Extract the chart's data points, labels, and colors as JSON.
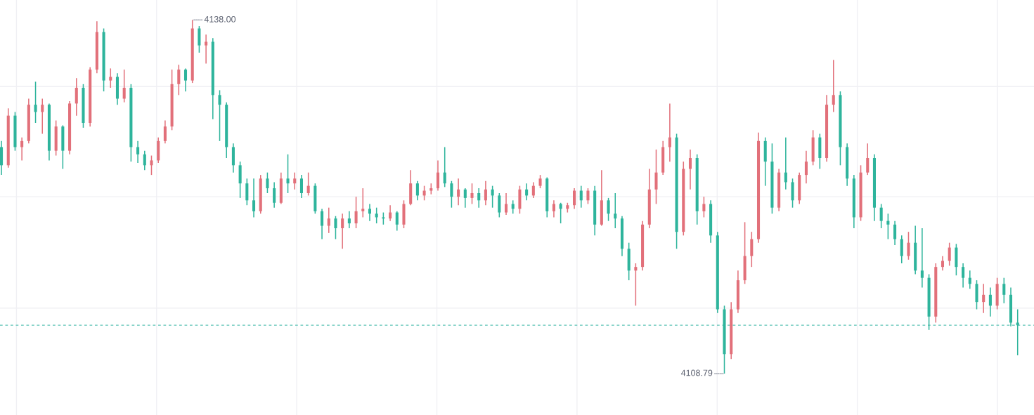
{
  "chart_data": {
    "type": "candlestick",
    "categories": [
      null,
      null,
      null,
      null,
      null,
      null,
      null,
      null,
      null,
      null,
      null,
      null,
      null,
      null,
      null,
      null,
      null,
      null,
      null,
      null,
      null,
      null,
      null,
      null,
      null,
      null,
      null,
      null,
      null,
      null,
      null,
      null,
      null,
      null,
      null,
      null,
      null,
      null,
      null,
      null,
      null,
      null,
      null,
      null,
      null,
      null,
      null,
      null,
      null,
      null,
      null,
      null,
      null,
      null,
      null,
      null,
      null,
      null,
      null,
      null,
      null,
      null,
      null,
      null,
      null,
      null,
      null,
      null,
      null,
      null,
      null,
      null,
      null,
      null,
      null,
      null,
      null,
      null,
      null,
      null,
      null,
      null,
      null,
      null,
      null,
      null,
      null,
      null,
      null,
      null,
      null,
      null,
      null,
      null,
      null,
      null,
      null,
      null,
      null,
      null,
      null,
      null,
      null,
      null,
      null,
      null,
      null,
      null,
      null,
      null,
      null,
      null,
      null,
      null,
      null,
      null,
      null,
      null,
      null,
      null,
      null,
      null,
      null,
      null,
      null,
      null,
      null,
      null,
      null,
      null,
      null,
      null,
      null,
      null,
      null,
      null,
      null,
      null,
      null,
      null,
      null,
      null,
      null,
      null,
      null,
      null,
      null,
      null,
      null,
      null
    ],
    "ohlc": [
      [
        4127.5,
        4128.0,
        4125.2,
        4126.0
      ],
      [
        4126.0,
        4130.7,
        4125.8,
        4130.1
      ],
      [
        4130.1,
        4130.4,
        4127.2,
        4127.5
      ],
      [
        4127.5,
        4128.3,
        4126.4,
        4128.0
      ],
      [
        4128.0,
        4131.5,
        4127.8,
        4131.0
      ],
      [
        4131.0,
        4132.9,
        4129.5,
        4130.4
      ],
      [
        4130.4,
        4131.5,
        4128.6,
        4131.0
      ],
      [
        4131.0,
        4131.1,
        4126.4,
        4127.2
      ],
      [
        4127.2,
        4129.7,
        4126.8,
        4129.2
      ],
      [
        4129.2,
        4129.3,
        4125.7,
        4127.2
      ],
      [
        4127.2,
        4131.3,
        4126.9,
        4131.1
      ],
      [
        4131.1,
        4133.2,
        4130.1,
        4132.4
      ],
      [
        4132.4,
        4132.7,
        4129.1,
        4129.5
      ],
      [
        4129.5,
        4134.1,
        4129.2,
        4133.9
      ],
      [
        4133.9,
        4137.9,
        4133.6,
        4137.0
      ],
      [
        4137.0,
        4137.3,
        4132.1,
        4133.0
      ],
      [
        4133.0,
        4134.0,
        4132.4,
        4133.3
      ],
      [
        4133.3,
        4133.6,
        4131.0,
        4131.5
      ],
      [
        4131.5,
        4133.9,
        4131.2,
        4132.4
      ],
      [
        4132.4,
        4132.7,
        4126.3,
        4127.5
      ],
      [
        4127.5,
        4128.0,
        4126.2,
        4126.9
      ],
      [
        4126.9,
        4127.2,
        4125.6,
        4126.0
      ],
      [
        4126.0,
        4126.8,
        4125.2,
        4126.4
      ],
      [
        4126.4,
        4128.3,
        4126.2,
        4128.0
      ],
      [
        4128.0,
        4129.7,
        4127.8,
        4129.2
      ],
      [
        4129.2,
        4133.9,
        4128.9,
        4132.7
      ],
      [
        4132.7,
        4134.3,
        4131.8,
        4133.9
      ],
      [
        4133.9,
        4134.0,
        4132.1,
        4133.0
      ],
      [
        4133.0,
        4138.0,
        4132.8,
        4137.3
      ],
      [
        4137.3,
        4137.5,
        4135.3,
        4135.9
      ],
      [
        4135.9,
        4136.8,
        4134.4,
        4136.2
      ],
      [
        4136.2,
        4136.5,
        4129.8,
        4131.8
      ],
      [
        4131.8,
        4132.2,
        4128.0,
        4131.0
      ],
      [
        4131.0,
        4131.2,
        4126.6,
        4127.5
      ],
      [
        4127.5,
        4127.8,
        4125.4,
        4126.0
      ],
      [
        4126.0,
        4126.3,
        4123.3,
        4124.5
      ],
      [
        4124.5,
        4124.9,
        4122.7,
        4123.1
      ],
      [
        4123.1,
        4124.9,
        4121.7,
        4122.2
      ],
      [
        4122.2,
        4125.2,
        4122.0,
        4124.9
      ],
      [
        4124.9,
        4125.4,
        4123.7,
        4124.1
      ],
      [
        4124.1,
        4124.6,
        4122.5,
        4122.9
      ],
      [
        4122.9,
        4125.4,
        4122.8,
        4124.9
      ],
      [
        4124.9,
        4126.9,
        4123.7,
        4124.5
      ],
      [
        4124.5,
        4125.4,
        4124.0,
        4124.9
      ],
      [
        4124.9,
        4125.2,
        4123.3,
        4123.7
      ],
      [
        4123.7,
        4125.4,
        4123.5,
        4124.3
      ],
      [
        4124.3,
        4124.5,
        4122.0,
        4122.2
      ],
      [
        4122.2,
        4122.4,
        4119.9,
        4121.0
      ],
      [
        4121.0,
        4122.5,
        4120.4,
        4121.6
      ],
      [
        4121.6,
        4121.8,
        4119.9,
        4120.8
      ],
      [
        4120.8,
        4122.0,
        4119.1,
        4121.6
      ],
      [
        4121.6,
        4122.2,
        4120.8,
        4121.2
      ],
      [
        4121.2,
        4123.4,
        4120.8,
        4122.2
      ],
      [
        4122.2,
        4124.1,
        4121.7,
        4122.4
      ],
      [
        4122.4,
        4122.8,
        4121.4,
        4122.0
      ],
      [
        4122.0,
        4122.5,
        4121.2,
        4121.7
      ],
      [
        4121.7,
        4122.1,
        4121.1,
        4121.6
      ],
      [
        4121.6,
        4122.7,
        4121.4,
        4122.1
      ],
      [
        4122.1,
        4122.2,
        4120.6,
        4121.1
      ],
      [
        4121.1,
        4123.1,
        4120.8,
        4122.8
      ],
      [
        4122.8,
        4125.6,
        4122.7,
        4124.5
      ],
      [
        4124.5,
        4124.7,
        4123.1,
        4123.5
      ],
      [
        4123.5,
        4124.3,
        4123.1,
        4123.9
      ],
      [
        4123.9,
        4124.5,
        4123.6,
        4124.1
      ],
      [
        4124.1,
        4126.4,
        4123.9,
        4125.4
      ],
      [
        4125.4,
        4127.5,
        4124.2,
        4124.5
      ],
      [
        4124.5,
        4124.7,
        4122.5,
        4123.4
      ],
      [
        4123.4,
        4124.9,
        4122.7,
        4124.0
      ],
      [
        4124.0,
        4124.1,
        4122.5,
        4123.3
      ],
      [
        4123.3,
        4124.5,
        4122.8,
        4123.7
      ],
      [
        4123.7,
        4124.1,
        4122.5,
        4123.1
      ],
      [
        4123.1,
        4124.7,
        4122.7,
        4124.0
      ],
      [
        4124.0,
        4124.3,
        4122.5,
        4123.5
      ],
      [
        4123.5,
        4123.7,
        4121.7,
        4122.1
      ],
      [
        4122.1,
        4123.7,
        4121.9,
        4122.8
      ],
      [
        4122.8,
        4123.1,
        4122.0,
        4122.4
      ],
      [
        4122.4,
        4124.3,
        4122.0,
        4124.0
      ],
      [
        4124.0,
        4124.5,
        4123.1,
        4123.5
      ],
      [
        4123.5,
        4124.6,
        4123.3,
        4124.3
      ],
      [
        4124.3,
        4125.2,
        4124.1,
        4124.9
      ],
      [
        4124.9,
        4125.0,
        4121.7,
        4122.2
      ],
      [
        4122.2,
        4123.1,
        4121.7,
        4122.8
      ],
      [
        4122.8,
        4122.9,
        4121.2,
        4122.4
      ],
      [
        4122.4,
        4122.9,
        4122.1,
        4122.7
      ],
      [
        4122.7,
        4124.1,
        4122.4,
        4123.9
      ],
      [
        4123.9,
        4124.3,
        4122.5,
        4123.1
      ],
      [
        4123.1,
        4124.1,
        4122.8,
        4123.9
      ],
      [
        4123.9,
        4124.3,
        4120.2,
        4121.1
      ],
      [
        4121.1,
        4125.6,
        4121.0,
        4123.1
      ],
      [
        4123.1,
        4123.3,
        4121.4,
        4122.0
      ],
      [
        4122.0,
        4123.7,
        4120.8,
        4121.6
      ],
      [
        4121.6,
        4121.8,
        4118.5,
        4119.1
      ],
      [
        4119.1,
        4119.6,
        4116.5,
        4117.3
      ],
      [
        4117.3,
        4117.9,
        4114.4,
        4117.6
      ],
      [
        4117.6,
        4121.4,
        4117.3,
        4121.1
      ],
      [
        4121.1,
        4125.7,
        4120.8,
        4124.0
      ],
      [
        4124.0,
        4127.3,
        4122.8,
        4125.4
      ],
      [
        4125.4,
        4128.0,
        4125.2,
        4127.5
      ],
      [
        4127.5,
        4131.1,
        4126.3,
        4128.3
      ],
      [
        4128.3,
        4128.6,
        4119.1,
        4120.5
      ],
      [
        4120.5,
        4126.3,
        4120.2,
        4125.7
      ],
      [
        4125.7,
        4127.3,
        4124.0,
        4126.6
      ],
      [
        4126.6,
        4126.9,
        4121.1,
        4122.2
      ],
      [
        4122.2,
        4123.4,
        4121.7,
        4122.8
      ],
      [
        4122.8,
        4123.1,
        4119.6,
        4120.2
      ],
      [
        4120.2,
        4120.5,
        4113.8,
        4114.1
      ],
      [
        4114.1,
        4114.4,
        4108.79,
        4110.4
      ],
      [
        4110.4,
        4114.7,
        4110.0,
        4114.1
      ],
      [
        4114.1,
        4117.3,
        4113.8,
        4116.5
      ],
      [
        4116.5,
        4121.3,
        4116.2,
        4118.5
      ],
      [
        4118.5,
        4120.5,
        4117.6,
        4119.9
      ],
      [
        4119.9,
        4128.7,
        4119.6,
        4128.0
      ],
      [
        4128.0,
        4128.3,
        4124.3,
        4126.3
      ],
      [
        4126.3,
        4127.8,
        4122.0,
        4122.5
      ],
      [
        4122.5,
        4125.7,
        4122.2,
        4125.4
      ],
      [
        4125.4,
        4128.3,
        4124.0,
        4124.6
      ],
      [
        4124.6,
        4124.9,
        4122.5,
        4123.1
      ],
      [
        4123.1,
        4125.4,
        4122.8,
        4125.2
      ],
      [
        4125.2,
        4127.2,
        4124.5,
        4126.3
      ],
      [
        4126.3,
        4128.9,
        4126.0,
        4128.3
      ],
      [
        4128.3,
        4128.6,
        4125.7,
        4126.6
      ],
      [
        4126.6,
        4131.8,
        4126.3,
        4131.0
      ],
      [
        4131.0,
        4134.7,
        4130.4,
        4131.8
      ],
      [
        4131.8,
        4132.1,
        4126.0,
        4127.5
      ],
      [
        4127.5,
        4127.8,
        4124.3,
        4124.9
      ],
      [
        4124.9,
        4125.2,
        4120.8,
        4121.7
      ],
      [
        4121.7,
        4126.0,
        4121.4,
        4125.4
      ],
      [
        4125.4,
        4127.8,
        4125.2,
        4126.6
      ],
      [
        4126.6,
        4126.9,
        4121.4,
        4122.5
      ],
      [
        4122.5,
        4122.8,
        4120.8,
        4121.4
      ],
      [
        4121.4,
        4122.0,
        4119.9,
        4121.1
      ],
      [
        4121.1,
        4121.4,
        4119.4,
        4119.9
      ],
      [
        4119.9,
        4120.2,
        4117.9,
        4118.5
      ],
      [
        4118.5,
        4120.5,
        4118.2,
        4119.6
      ],
      [
        4119.6,
        4121.0,
        4117.0,
        4117.3
      ],
      [
        4117.3,
        4120.8,
        4115.9,
        4116.7
      ],
      [
        4116.7,
        4117.0,
        4112.4,
        4113.5
      ],
      [
        4113.5,
        4117.9,
        4113.0,
        4117.6
      ],
      [
        4117.6,
        4118.5,
        4117.3,
        4118.1
      ],
      [
        4118.1,
        4119.6,
        4117.7,
        4119.2
      ],
      [
        4119.2,
        4119.5,
        4116.9,
        4117.6
      ],
      [
        4117.6,
        4117.9,
        4115.9,
        4116.7
      ],
      [
        4116.7,
        4117.3,
        4115.8,
        4116.2
      ],
      [
        4116.2,
        4116.5,
        4114.1,
        4114.7
      ],
      [
        4114.7,
        4116.2,
        4113.8,
        4115.3
      ],
      [
        4115.3,
        4115.9,
        4113.5,
        4114.4
      ],
      [
        4114.4,
        4116.7,
        4114.1,
        4116.2
      ],
      [
        4116.2,
        4116.7,
        4114.6,
        4115.3
      ],
      [
        4115.3,
        4115.9,
        4112.7,
        4113.0
      ],
      [
        4113.0,
        4114.1,
        4110.3,
        4112.78
      ]
    ],
    "colors": [
      "#2eb49c",
      "#e2707a",
      "#2eb49c",
      "#e2707a",
      "#e2707a",
      "#2eb49c",
      "#e2707a",
      "#2eb49c",
      "#e2707a",
      "#2eb49c",
      "#e2707a",
      "#e2707a",
      "#2eb49c",
      "#e2707a",
      "#e2707a",
      "#2eb49c",
      "#e2707a",
      "#2eb49c",
      "#e2707a",
      "#2eb49c",
      "#2eb49c",
      "#2eb49c",
      "#e2707a",
      "#e2707a",
      "#e2707a",
      "#e2707a",
      "#e2707a",
      "#2eb49c",
      "#e2707a",
      "#2eb49c",
      "#e2707a",
      "#2eb49c",
      "#2eb49c",
      "#2eb49c",
      "#2eb49c",
      "#2eb49c",
      "#2eb49c",
      "#2eb49c",
      "#e2707a",
      "#2eb49c",
      "#2eb49c",
      "#e2707a",
      "#2eb49c",
      "#e2707a",
      "#2eb49c",
      "#e2707a",
      "#2eb49c",
      "#2eb49c",
      "#e2707a",
      "#2eb49c",
      "#e2707a",
      "#2eb49c",
      "#e2707a",
      "#e2707a",
      "#2eb49c",
      "#2eb49c",
      "#2eb49c",
      "#e2707a",
      "#2eb49c",
      "#e2707a",
      "#e2707a",
      "#2eb49c",
      "#e2707a",
      "#e2707a",
      "#e2707a",
      "#2eb49c",
      "#2eb49c",
      "#e2707a",
      "#2eb49c",
      "#e2707a",
      "#2eb49c",
      "#e2707a",
      "#2eb49c",
      "#2eb49c",
      "#e2707a",
      "#2eb49c",
      "#e2707a",
      "#2eb49c",
      "#e2707a",
      "#e2707a",
      "#2eb49c",
      "#e2707a",
      "#2eb49c",
      "#e2707a",
      "#e2707a",
      "#2eb49c",
      "#e2707a",
      "#2eb49c",
      "#e2707a",
      "#2eb49c",
      "#2eb49c",
      "#2eb49c",
      "#2eb49c",
      "#e2707a",
      "#e2707a",
      "#e2707a",
      "#e2707a",
      "#e2707a",
      "#e2707a",
      "#2eb49c",
      "#e2707a",
      "#e2707a",
      "#2eb49c",
      "#e2707a",
      "#2eb49c",
      "#2eb49c",
      "#2eb49c",
      "#e2707a",
      "#e2707a",
      "#e2707a",
      "#e2707a",
      "#e2707a",
      "#2eb49c",
      "#2eb49c",
      "#e2707a",
      "#2eb49c",
      "#2eb49c",
      "#e2707a",
      "#e2707a",
      "#e2707a",
      "#2eb49c",
      "#e2707a",
      "#e2707a",
      "#2eb49c",
      "#2eb49c",
      "#2eb49c",
      "#e2707a",
      "#e2707a",
      "#2eb49c",
      "#2eb49c",
      "#2eb49c",
      "#2eb49c",
      "#2eb49c",
      "#e2707a",
      "#2eb49c",
      "#2eb49c",
      "#2eb49c",
      "#e2707a",
      "#e2707a",
      "#e2707a",
      "#2eb49c",
      "#2eb49c",
      "#2eb49c",
      "#2eb49c",
      "#e2707a",
      "#2eb49c",
      "#e2707a",
      "#2eb49c",
      "#2eb49c",
      "#2eb49c"
    ],
    "ylim": [
      4105.37,
      4139.65
    ],
    "yticks": [
      {
        "value": 4132.5,
        "label": null
      },
      {
        "value": 4123.4,
        "label": null
      },
      {
        "value": 4114.2,
        "label": null
      }
    ],
    "grid": true,
    "ref_lines": [
      {
        "axis": "y",
        "value": 4112.78,
        "color": "#5ec4b6",
        "line_style": "dashed"
      }
    ],
    "annotations": [
      "4138.00",
      "4108.79"
    ]
  }
}
